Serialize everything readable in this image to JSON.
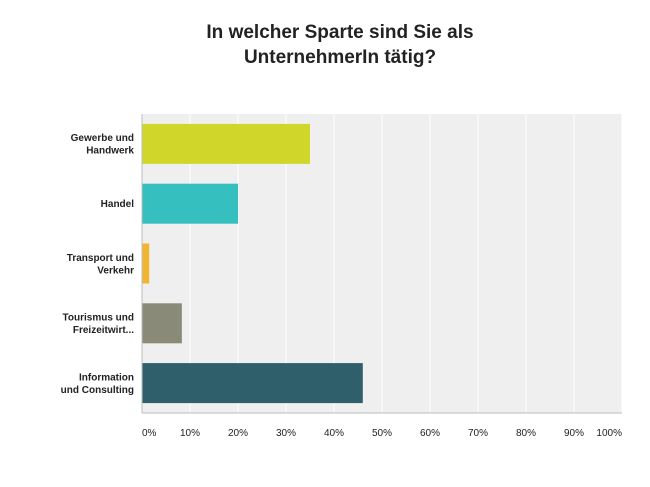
{
  "chart_data": {
    "type": "bar",
    "orientation": "horizontal",
    "title_lines": [
      "In welcher Sparte sind Sie als",
      "UnternehmerIn tätig?"
    ],
    "categories": [
      [
        "Gewerbe und",
        "Handwerk"
      ],
      [
        "Handel"
      ],
      [
        "Transport und",
        "Verkehr"
      ],
      [
        "Tourismus und",
        "Freizeitwirt..."
      ],
      [
        "Information",
        "und Consulting"
      ]
    ],
    "values": [
      35,
      20,
      1.5,
      8.3,
      46
    ],
    "colors": [
      "#d0d62a",
      "#35bfbf",
      "#f1b531",
      "#898a78",
      "#2e5f6b"
    ],
    "xlim": [
      0,
      100
    ],
    "x_ticks": [
      "0%",
      "10%",
      "20%",
      "30%",
      "40%",
      "50%",
      "60%",
      "70%",
      "80%",
      "90%",
      "100%"
    ],
    "grid": true,
    "plot_background": "#efefef"
  }
}
